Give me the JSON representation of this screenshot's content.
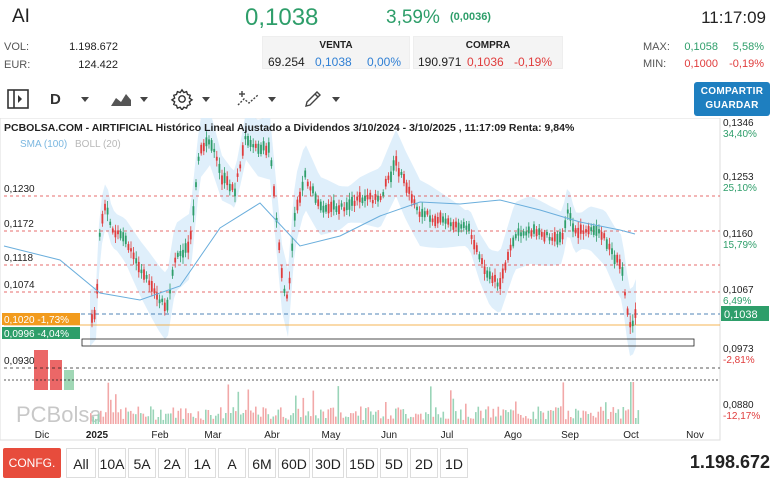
{
  "header": {
    "ticker": "AI",
    "price": "0,1038",
    "change_pct": "3,59%",
    "change_abs": "(0,0036)",
    "time": "11:17:09",
    "vol_label": "VOL:",
    "vol_value": "1.198.672",
    "eur_label": "EUR:",
    "eur_value": "124.422",
    "max_label": "MAX:",
    "max_value": "0,1058",
    "max_pct": "5,58%",
    "min_label": "MIN:",
    "min_value": "0,1000",
    "min_pct": "-0,19%"
  },
  "venta": {
    "title": "VENTA",
    "qty": "69.254",
    "price": "0,1038",
    "pct": "0,00%"
  },
  "compra": {
    "title": "COMPRA",
    "qty": "190.971",
    "price": "0,1036",
    "pct": "-0,19%"
  },
  "toolbar": {
    "period_label": "D",
    "share_label_1": "COMPARTIR",
    "share_label_2": "GUARDAR"
  },
  "chart_data": {
    "type": "line",
    "title": "PCBOLSA.COM - AIRTIFICIAL Histórico Lineal Ajustado a Dividendos 3/10/2024 - 3/10/2025 , 11:17:09 Renta: 9,84%",
    "legend": [
      "SMA (100)",
      "BOLL (20)"
    ],
    "watermark": "PCBolsa",
    "x_ticks": [
      "Dic",
      "2025",
      "Feb",
      "Mar",
      "Abr",
      "May",
      "Jun",
      "Jul",
      "Ago",
      "Sep",
      "Oct",
      "Nov"
    ],
    "left_levels": [
      {
        "value": "0,1230",
        "color": "#e03c3c"
      },
      {
        "value": "0,1172",
        "color": "#e03c3c"
      },
      {
        "value": "0,1118",
        "color": "#e03c3c"
      },
      {
        "value": "0,1074",
        "color": "#e03c3c"
      },
      {
        "value": "0,0930",
        "color": "#222"
      }
    ],
    "left_tags": [
      {
        "value": "0,1020 -1,73%",
        "color": "#f29b1d"
      },
      {
        "value": "0,0996 -4,04%",
        "color": "#2e9e6a"
      }
    ],
    "right_axis": [
      {
        "value": "0,1346",
        "pct": "34,40%"
      },
      {
        "value": "0,1253",
        "pct": "25,10%"
      },
      {
        "value": "0,1160",
        "pct": "15,79%"
      },
      {
        "value": "0,1067",
        "pct": "6,49%"
      },
      {
        "value": "0,0973",
        "pct": "-2,81%"
      },
      {
        "value": "0,0880",
        "pct": "-12,17%"
      }
    ],
    "last_price": "0,1038",
    "colors": {
      "up": "#2e9e6a",
      "down": "#e03c3c",
      "band": "#d7ebfa",
      "sma": "#6aaedc"
    }
  },
  "bottom": {
    "config_label": "CONFG.",
    "periods": [
      "All",
      "10A",
      "5A",
      "2A",
      "1A",
      "A",
      "6M",
      "60D",
      "30D",
      "15D",
      "5D",
      "2D",
      "1D"
    ],
    "total_volume": "1.198.672"
  }
}
